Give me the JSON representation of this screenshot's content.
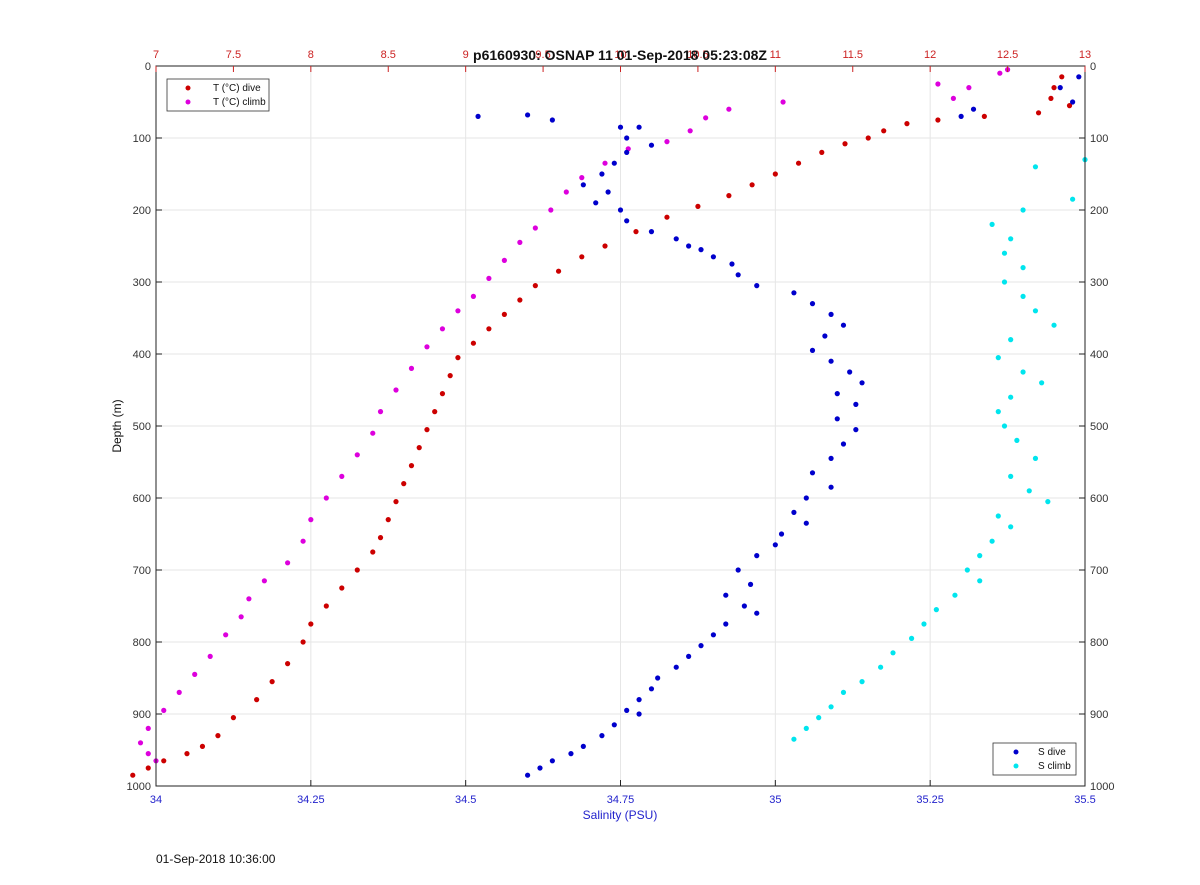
{
  "chart_data": {
    "type": "scatter",
    "title": "p6160930: OSNAP 11 01-Sep-2018 05:23:08Z",
    "xlabel": "Salinity (PSU)",
    "ylabel": "Depth (m)",
    "xlim": [
      34,
      35.5
    ],
    "x2lim": [
      7,
      13
    ],
    "ylim": [
      0,
      1000
    ],
    "y_reversed": true,
    "grid": true,
    "x_ticks": [
      "34",
      "34.25",
      "34.5",
      "34.75",
      "35",
      "35.25",
      "35.5"
    ],
    "x_tick_values": [
      34,
      34.25,
      34.5,
      34.75,
      35,
      35.25,
      35.5
    ],
    "x2_ticks": [
      "7",
      "7.5",
      "8",
      "8.5",
      "9",
      "9.5",
      "10",
      "10.5",
      "11",
      "11.5",
      "12",
      "12.5",
      "13"
    ],
    "x2_tick_values": [
      7,
      7.5,
      8,
      8.5,
      9,
      9.5,
      10,
      10.5,
      11,
      11.5,
      12,
      12.5,
      13
    ],
    "y_ticks": [
      "0",
      "100",
      "200",
      "300",
      "400",
      "500",
      "600",
      "700",
      "800",
      "900",
      "1000"
    ],
    "y_tick_values": [
      0,
      100,
      200,
      300,
      400,
      500,
      600,
      700,
      800,
      900,
      1000
    ],
    "legend_top": {
      "placement": "top-left",
      "entries": [
        "T (°C) dive",
        "T (°C) climb"
      ]
    },
    "legend_bottom": {
      "placement": "bottom-right",
      "entries": [
        "S dive",
        "S climb"
      ]
    },
    "series": [
      {
        "name": "T (°C) dive",
        "axis": "top",
        "color": "#cc0000",
        "points": [
          [
            12.85,
            15
          ],
          [
            12.8,
            30
          ],
          [
            12.78,
            45
          ],
          [
            12.9,
            55
          ],
          [
            12.7,
            65
          ],
          [
            12.05,
            75
          ],
          [
            12.35,
            70
          ],
          [
            11.85,
            80
          ],
          [
            11.7,
            90
          ],
          [
            11.6,
            100
          ],
          [
            11.45,
            108
          ],
          [
            11.3,
            120
          ],
          [
            11.15,
            135
          ],
          [
            11.0,
            150
          ],
          [
            10.85,
            165
          ],
          [
            10.7,
            180
          ],
          [
            10.5,
            195
          ],
          [
            10.3,
            210
          ],
          [
            10.1,
            230
          ],
          [
            9.9,
            250
          ],
          [
            9.75,
            265
          ],
          [
            9.6,
            285
          ],
          [
            9.45,
            305
          ],
          [
            9.35,
            325
          ],
          [
            9.25,
            345
          ],
          [
            9.15,
            365
          ],
          [
            9.05,
            385
          ],
          [
            8.95,
            405
          ],
          [
            8.9,
            430
          ],
          [
            8.85,
            455
          ],
          [
            8.8,
            480
          ],
          [
            8.75,
            505
          ],
          [
            8.7,
            530
          ],
          [
            8.65,
            555
          ],
          [
            8.6,
            580
          ],
          [
            8.55,
            605
          ],
          [
            8.5,
            630
          ],
          [
            8.45,
            655
          ],
          [
            8.4,
            675
          ],
          [
            8.3,
            700
          ],
          [
            8.2,
            725
          ],
          [
            8.1,
            750
          ],
          [
            8.0,
            775
          ],
          [
            7.95,
            800
          ],
          [
            7.85,
            830
          ],
          [
            7.75,
            855
          ],
          [
            7.65,
            880
          ],
          [
            7.5,
            905
          ],
          [
            7.4,
            930
          ],
          [
            7.3,
            945
          ],
          [
            7.2,
            955
          ],
          [
            7.05,
            965
          ],
          [
            6.95,
            975
          ],
          [
            6.85,
            985
          ]
        ]
      },
      {
        "name": "T (°C) climb",
        "axis": "top",
        "color": "#dd00dd",
        "points": [
          [
            12.5,
            5
          ],
          [
            12.45,
            10
          ],
          [
            12.05,
            25
          ],
          [
            12.25,
            30
          ],
          [
            12.15,
            45
          ],
          [
            11.05,
            50
          ],
          [
            10.7,
            60
          ],
          [
            10.55,
            72
          ],
          [
            10.45,
            90
          ],
          [
            10.3,
            105
          ],
          [
            10.05,
            115
          ],
          [
            9.9,
            135
          ],
          [
            9.75,
            155
          ],
          [
            9.65,
            175
          ],
          [
            9.55,
            200
          ],
          [
            9.45,
            225
          ],
          [
            9.35,
            245
          ],
          [
            9.25,
            270
          ],
          [
            9.15,
            295
          ],
          [
            9.05,
            320
          ],
          [
            8.95,
            340
          ],
          [
            8.85,
            365
          ],
          [
            8.75,
            390
          ],
          [
            8.65,
            420
          ],
          [
            8.55,
            450
          ],
          [
            8.45,
            480
          ],
          [
            8.4,
            510
          ],
          [
            8.3,
            540
          ],
          [
            8.2,
            570
          ],
          [
            8.1,
            600
          ],
          [
            8.0,
            630
          ],
          [
            7.95,
            660
          ],
          [
            7.85,
            690
          ],
          [
            7.7,
            715
          ],
          [
            7.6,
            740
          ],
          [
            7.55,
            765
          ],
          [
            7.45,
            790
          ],
          [
            7.35,
            820
          ],
          [
            7.25,
            845
          ],
          [
            7.15,
            870
          ],
          [
            7.05,
            895
          ],
          [
            6.95,
            920
          ],
          [
            6.9,
            940
          ],
          [
            6.95,
            955
          ],
          [
            7.0,
            965
          ]
        ]
      },
      {
        "name": "S dive",
        "axis": "bottom",
        "color": "#0000cc",
        "points": [
          [
            35.49,
            15
          ],
          [
            35.46,
            30
          ],
          [
            35.48,
            50
          ],
          [
            35.32,
            60
          ],
          [
            35.3,
            70
          ],
          [
            34.52,
            70
          ],
          [
            34.6,
            68
          ],
          [
            34.64,
            75
          ],
          [
            34.75,
            85
          ],
          [
            34.76,
            100
          ],
          [
            34.78,
            85
          ],
          [
            34.8,
            110
          ],
          [
            34.76,
            120
          ],
          [
            34.74,
            135
          ],
          [
            34.72,
            150
          ],
          [
            34.69,
            165
          ],
          [
            34.73,
            175
          ],
          [
            34.71,
            190
          ],
          [
            34.75,
            200
          ],
          [
            34.76,
            215
          ],
          [
            34.8,
            230
          ],
          [
            34.84,
            240
          ],
          [
            34.86,
            250
          ],
          [
            34.88,
            255
          ],
          [
            34.9,
            265
          ],
          [
            34.93,
            275
          ],
          [
            34.94,
            290
          ],
          [
            34.97,
            305
          ],
          [
            35.03,
            315
          ],
          [
            35.06,
            330
          ],
          [
            35.09,
            345
          ],
          [
            35.11,
            360
          ],
          [
            35.08,
            375
          ],
          [
            35.06,
            395
          ],
          [
            35.09,
            410
          ],
          [
            35.12,
            425
          ],
          [
            35.14,
            440
          ],
          [
            35.1,
            455
          ],
          [
            35.13,
            470
          ],
          [
            35.1,
            490
          ],
          [
            35.13,
            505
          ],
          [
            35.11,
            525
          ],
          [
            35.09,
            545
          ],
          [
            35.06,
            565
          ],
          [
            35.09,
            585
          ],
          [
            35.05,
            600
          ],
          [
            35.03,
            620
          ],
          [
            35.05,
            635
          ],
          [
            35.01,
            650
          ],
          [
            35.0,
            665
          ],
          [
            34.97,
            680
          ],
          [
            34.94,
            700
          ],
          [
            34.96,
            720
          ],
          [
            34.92,
            735
          ],
          [
            34.95,
            750
          ],
          [
            34.97,
            760
          ],
          [
            34.92,
            775
          ],
          [
            34.9,
            790
          ],
          [
            34.88,
            805
          ],
          [
            34.86,
            820
          ],
          [
            34.84,
            835
          ],
          [
            34.81,
            850
          ],
          [
            34.8,
            865
          ],
          [
            34.78,
            880
          ],
          [
            34.76,
            895
          ],
          [
            34.78,
            900
          ],
          [
            34.74,
            915
          ],
          [
            34.72,
            930
          ],
          [
            34.69,
            945
          ],
          [
            34.67,
            955
          ],
          [
            34.64,
            965
          ],
          [
            34.62,
            975
          ],
          [
            34.6,
            985
          ]
        ]
      },
      {
        "name": "S climb",
        "axis": "bottom",
        "color": "#00e5ee",
        "points": [
          [
            35.5,
            130
          ],
          [
            35.42,
            140
          ],
          [
            35.48,
            185
          ],
          [
            35.4,
            200
          ],
          [
            35.35,
            220
          ],
          [
            35.38,
            240
          ],
          [
            35.37,
            260
          ],
          [
            35.4,
            280
          ],
          [
            35.37,
            300
          ],
          [
            35.4,
            320
          ],
          [
            35.42,
            340
          ],
          [
            35.45,
            360
          ],
          [
            35.38,
            380
          ],
          [
            35.36,
            405
          ],
          [
            35.4,
            425
          ],
          [
            35.43,
            440
          ],
          [
            35.38,
            460
          ],
          [
            35.36,
            480
          ],
          [
            35.37,
            500
          ],
          [
            35.39,
            520
          ],
          [
            35.42,
            545
          ],
          [
            35.38,
            570
          ],
          [
            35.41,
            590
          ],
          [
            35.44,
            605
          ],
          [
            35.36,
            625
          ],
          [
            35.38,
            640
          ],
          [
            35.35,
            660
          ],
          [
            35.33,
            680
          ],
          [
            35.31,
            700
          ],
          [
            35.33,
            715
          ],
          [
            35.29,
            735
          ],
          [
            35.26,
            755
          ],
          [
            35.24,
            775
          ],
          [
            35.22,
            795
          ],
          [
            35.19,
            815
          ],
          [
            35.17,
            835
          ],
          [
            35.14,
            855
          ],
          [
            35.11,
            870
          ],
          [
            35.09,
            890
          ],
          [
            35.07,
            905
          ],
          [
            35.05,
            920
          ],
          [
            35.03,
            935
          ]
        ]
      }
    ]
  },
  "footer": {
    "timestamp": "01-Sep-2018 10:36:00"
  }
}
